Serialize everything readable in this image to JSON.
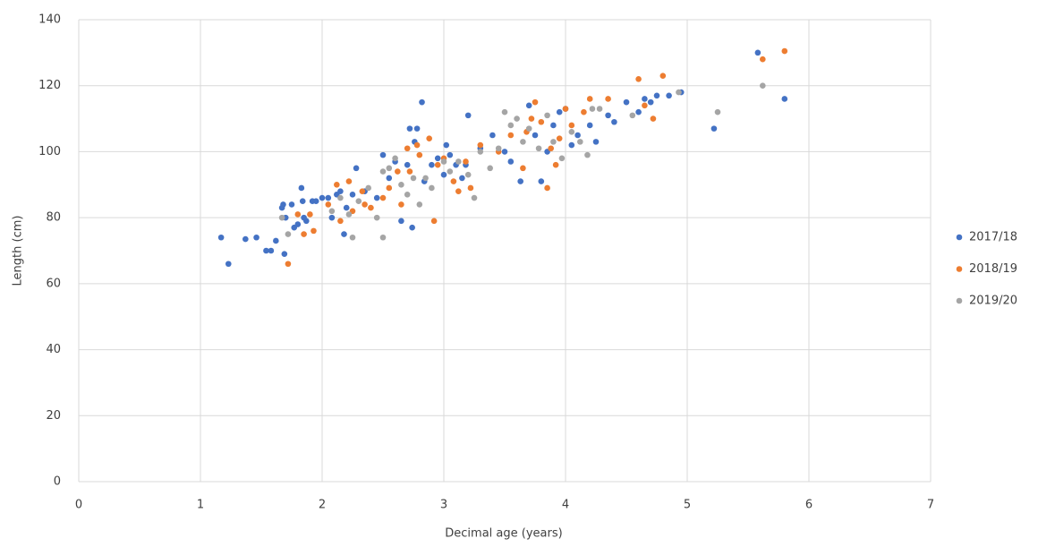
{
  "chart_data": {
    "type": "scatter",
    "x_label": "Decimal age (years)",
    "y_label": "Length (cm)",
    "xlim": [
      0,
      7
    ],
    "xticks": [
      0,
      1,
      2,
      3,
      4,
      5,
      6,
      7
    ],
    "ylim": [
      0,
      140
    ],
    "yticks": [
      0,
      20,
      40,
      60,
      80,
      100,
      120,
      140
    ],
    "grid": true,
    "legend": "right",
    "series": [
      {
        "name": "2017/18",
        "color": "#4472c4",
        "x": [
          1.17,
          1.23,
          1.37,
          1.46,
          1.54,
          1.58,
          1.62,
          1.67,
          1.68,
          1.69,
          1.7,
          1.75,
          1.77,
          1.8,
          1.83,
          1.84,
          1.85,
          1.87,
          1.92,
          1.95,
          2.0,
          2.05,
          2.08,
          2.12,
          2.15,
          2.18,
          2.2,
          2.25,
          2.28,
          2.35,
          2.45,
          2.5,
          2.55,
          2.6,
          2.65,
          2.7,
          2.72,
          2.74,
          2.76,
          2.78,
          2.82,
          2.84,
          2.9,
          2.95,
          3.0,
          3.02,
          3.05,
          3.1,
          3.15,
          3.18,
          3.2,
          3.3,
          3.4,
          3.5,
          3.55,
          3.63,
          3.7,
          3.75,
          3.8,
          3.85,
          3.9,
          3.95,
          4.0,
          4.05,
          4.1,
          4.2,
          4.25,
          4.35,
          4.4,
          4.5,
          4.6,
          4.65,
          4.7,
          4.75,
          4.85,
          4.95,
          5.22,
          5.58,
          5.8
        ],
        "values": [
          74,
          66,
          73.5,
          74,
          70,
          70,
          73,
          83,
          84,
          69,
          80,
          84,
          77,
          78,
          89,
          85,
          80,
          79,
          85,
          85,
          86,
          86,
          80,
          87,
          88,
          75,
          83,
          87,
          95,
          88,
          86,
          99,
          92,
          97,
          79,
          96,
          107,
          77,
          103,
          107,
          115,
          91,
          96,
          98,
          93,
          102,
          99,
          96,
          92,
          96,
          111,
          101,
          105,
          100,
          97,
          91,
          114,
          105,
          91,
          100,
          108,
          112,
          113,
          102,
          105,
          108,
          103,
          111,
          109,
          115,
          112,
          116,
          115,
          117,
          117,
          118,
          107,
          130,
          116
        ]
      },
      {
        "name": "2018/19",
        "color": "#ed7d31",
        "x": [
          1.72,
          1.8,
          1.85,
          1.9,
          1.93,
          2.05,
          2.12,
          2.15,
          2.22,
          2.25,
          2.33,
          2.35,
          2.4,
          2.5,
          2.55,
          2.62,
          2.65,
          2.7,
          2.72,
          2.78,
          2.8,
          2.88,
          2.92,
          2.95,
          3.0,
          3.08,
          3.12,
          3.18,
          3.22,
          3.3,
          3.45,
          3.55,
          3.65,
          3.68,
          3.72,
          3.75,
          3.8,
          3.85,
          3.88,
          3.92,
          3.95,
          4.0,
          4.05,
          4.15,
          4.2,
          4.35,
          4.6,
          4.65,
          4.72,
          4.8,
          5.62,
          5.8
        ],
        "values": [
          66,
          81,
          75,
          81,
          76,
          84,
          90,
          79,
          91,
          82,
          88,
          84,
          83,
          86,
          89,
          94,
          84,
          101,
          94,
          102,
          99,
          104,
          79,
          96,
          98,
          91,
          88,
          97,
          89,
          102,
          100,
          105,
          95,
          106,
          110,
          115,
          109,
          89,
          101,
          96,
          104,
          113,
          108,
          112,
          116,
          116,
          122,
          114,
          110,
          123,
          128,
          130.5
        ]
      },
      {
        "name": "2019/20",
        "color": "#a5a5a5",
        "x": [
          1.67,
          1.72,
          2.08,
          2.15,
          2.22,
          2.25,
          2.3,
          2.38,
          2.45,
          2.5,
          2.5,
          2.55,
          2.6,
          2.65,
          2.7,
          2.75,
          2.8,
          2.85,
          2.9,
          3.0,
          3.05,
          3.12,
          3.2,
          3.25,
          3.3,
          3.38,
          3.45,
          3.5,
          3.55,
          3.6,
          3.65,
          3.7,
          3.78,
          3.85,
          3.9,
          3.97,
          4.05,
          4.12,
          4.18,
          4.22,
          4.28,
          4.55,
          4.93,
          5.25,
          5.62
        ],
        "values": [
          80,
          75,
          82,
          86,
          81,
          74,
          85,
          89,
          80,
          74,
          94,
          95,
          98,
          90,
          87,
          92,
          84,
          92,
          89,
          97,
          94,
          97,
          93,
          86,
          100,
          95,
          101,
          112,
          108,
          110,
          103,
          107,
          101,
          111,
          103,
          98,
          106,
          103,
          99,
          113,
          113,
          111,
          118,
          112,
          120
        ]
      }
    ]
  }
}
